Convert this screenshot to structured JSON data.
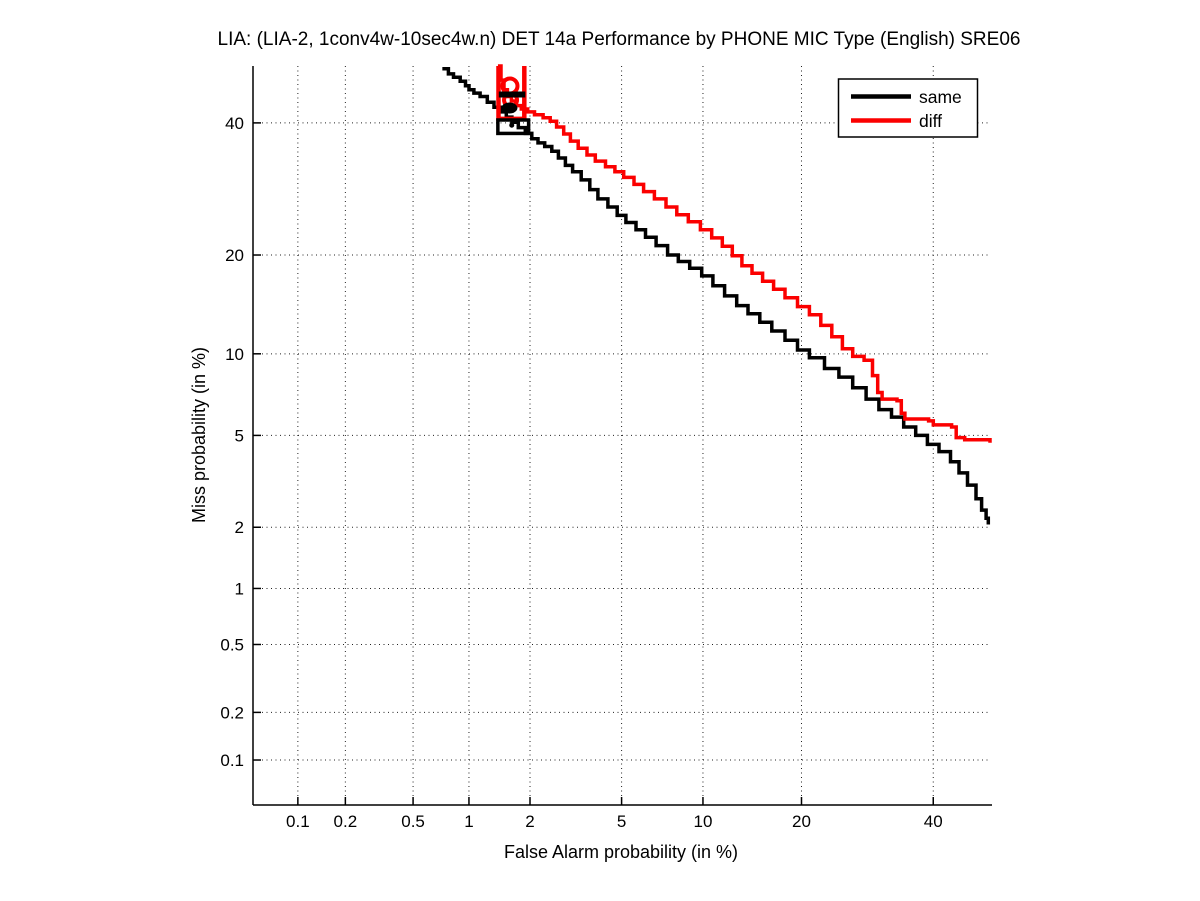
{
  "chart_data": {
    "type": "line",
    "title": "LIA: (LIA-2, 1conv4w-10sec4w.n) DET 14a Performance by PHONE MIC Type (English) SRE06",
    "xlabel": "False Alarm probability (in %)",
    "ylabel": "Miss probability (in %)",
    "scale": "normal-deviate (probit) on both axes",
    "xlim": [
      0.05,
      50
    ],
    "ylim": [
      0.05,
      50
    ],
    "grid": "dotted",
    "x_ticks": [
      0.1,
      0.2,
      0.5,
      1,
      2,
      5,
      10,
      20,
      40
    ],
    "x_tick_labels": [
      "0.1",
      "0.2",
      "0.5",
      "1",
      "2",
      "5",
      "10",
      "20",
      "40"
    ],
    "y_ticks": [
      0.1,
      0.2,
      0.5,
      1,
      2,
      5,
      10,
      20,
      40
    ],
    "y_tick_labels": [
      "0.1",
      "0.2",
      "0.5",
      "1",
      "2",
      "5",
      "10",
      "20",
      "40"
    ],
    "legend": {
      "position": "top-right",
      "entries": [
        {
          "label": "same",
          "color": "#000000"
        },
        {
          "label": "diff",
          "color": "#fb0000"
        }
      ]
    },
    "series": [
      {
        "name": "same",
        "color": "#000000",
        "points_fa_miss_percent": [
          [
            0.74,
            49.5
          ],
          [
            0.78,
            48.6
          ],
          [
            0.83,
            48.0
          ],
          [
            0.9,
            47.3
          ],
          [
            0.96,
            46.5
          ],
          [
            1.0,
            45.8
          ],
          [
            1.06,
            45.2
          ],
          [
            1.14,
            44.6
          ],
          [
            1.24,
            43.6
          ],
          [
            1.34,
            42.7
          ],
          [
            1.44,
            41.9
          ],
          [
            1.54,
            41.0
          ],
          [
            1.64,
            40.1
          ],
          [
            1.76,
            39.2
          ],
          [
            1.9,
            38.2
          ],
          [
            2.04,
            37.3
          ],
          [
            2.18,
            36.6
          ],
          [
            2.34,
            36.0
          ],
          [
            2.52,
            35.2
          ],
          [
            2.7,
            34.1
          ],
          [
            2.9,
            32.9
          ],
          [
            3.12,
            31.9
          ],
          [
            3.4,
            30.6
          ],
          [
            3.7,
            29.1
          ],
          [
            4.0,
            27.7
          ],
          [
            4.4,
            26.5
          ],
          [
            4.8,
            25.3
          ],
          [
            5.2,
            24.3
          ],
          [
            5.7,
            23.3
          ],
          [
            6.2,
            22.3
          ],
          [
            6.8,
            21.2
          ],
          [
            7.5,
            20.0
          ],
          [
            8.2,
            19.2
          ],
          [
            9.0,
            18.4
          ],
          [
            9.9,
            17.5
          ],
          [
            10.8,
            16.4
          ],
          [
            11.8,
            15.3
          ],
          [
            12.9,
            14.3
          ],
          [
            14.0,
            13.5
          ],
          [
            15.2,
            12.7
          ],
          [
            16.5,
            11.9
          ],
          [
            18.0,
            11.1
          ],
          [
            19.5,
            10.3
          ],
          [
            21.0,
            9.7
          ],
          [
            23.0,
            8.9
          ],
          [
            25.0,
            8.3
          ],
          [
            27.0,
            7.6
          ],
          [
            29.0,
            6.9
          ],
          [
            31.0,
            6.3
          ],
          [
            33.0,
            5.9
          ],
          [
            35.0,
            5.4
          ],
          [
            37.0,
            5.0
          ],
          [
            39.0,
            4.6
          ],
          [
            41.0,
            4.3
          ],
          [
            43.0,
            3.9
          ],
          [
            44.5,
            3.5
          ],
          [
            46.0,
            3.1
          ],
          [
            47.5,
            2.7
          ],
          [
            48.5,
            2.4
          ],
          [
            49.3,
            2.2
          ],
          [
            49.7,
            2.1
          ]
        ]
      },
      {
        "name": "diff",
        "color": "#fb0000",
        "points_fa_miss_percent": [
          [
            1.43,
            50.0
          ],
          [
            1.45,
            47.5
          ],
          [
            1.5,
            45.8
          ],
          [
            1.56,
            44.6
          ],
          [
            1.63,
            43.8
          ],
          [
            1.72,
            43.0
          ],
          [
            1.82,
            42.4
          ],
          [
            1.95,
            41.9
          ],
          [
            2.1,
            41.4
          ],
          [
            2.3,
            40.9
          ],
          [
            2.48,
            40.3
          ],
          [
            2.65,
            39.3
          ],
          [
            2.85,
            38.1
          ],
          [
            3.05,
            36.9
          ],
          [
            3.3,
            35.7
          ],
          [
            3.6,
            34.6
          ],
          [
            3.9,
            33.6
          ],
          [
            4.3,
            32.7
          ],
          [
            4.7,
            31.9
          ],
          [
            5.1,
            31.0
          ],
          [
            5.6,
            29.9
          ],
          [
            6.1,
            28.8
          ],
          [
            6.7,
            27.7
          ],
          [
            7.4,
            26.5
          ],
          [
            8.1,
            25.4
          ],
          [
            8.9,
            24.4
          ],
          [
            9.8,
            23.3
          ],
          [
            10.7,
            22.2
          ],
          [
            11.6,
            21.1
          ],
          [
            12.5,
            19.9
          ],
          [
            13.4,
            18.7
          ],
          [
            14.4,
            17.8
          ],
          [
            15.5,
            16.9
          ],
          [
            16.7,
            16.0
          ],
          [
            18.0,
            15.1
          ],
          [
            19.5,
            14.2
          ],
          [
            21.0,
            13.4
          ],
          [
            22.5,
            12.4
          ],
          [
            24.0,
            11.4
          ],
          [
            25.5,
            10.4
          ],
          [
            27.0,
            9.8
          ],
          [
            28.7,
            9.5
          ],
          [
            30.0,
            8.4
          ],
          [
            30.8,
            7.3
          ],
          [
            31.5,
            6.9
          ],
          [
            33.9,
            6.8
          ],
          [
            34.6,
            6.1
          ],
          [
            35.2,
            5.8
          ],
          [
            39.2,
            5.7
          ],
          [
            40.0,
            5.5
          ],
          [
            43.2,
            5.4
          ],
          [
            44.0,
            4.9
          ],
          [
            45.5,
            4.8
          ],
          [
            50.0,
            4.75
          ]
        ]
      }
    ],
    "annotations": [
      {
        "id": "diff-operating-box",
        "type": "open_top_box",
        "color": "#fb0000",
        "fa_min": 1.41,
        "fa_max": 1.88,
        "miss_bottom": 40.7,
        "lw": 4.5
      },
      {
        "id": "diff-point-upper",
        "type": "ring",
        "color": "#fb0000",
        "fa": 1.605,
        "miss": 46.45,
        "r": 7.5,
        "lw": 4
      },
      {
        "id": "diff-point-lower",
        "type": "ring",
        "color": "#fb0000",
        "fa": 1.615,
        "miss": 43.98,
        "r": 6.5,
        "lw": 4
      },
      {
        "id": "same-box-top-bar",
        "type": "hbar",
        "color": "#000000",
        "fa_min": 1.415,
        "fa_max": 1.9,
        "miss": 44.95,
        "lw": 6
      },
      {
        "id": "same-point",
        "type": "dot",
        "color": "#000000",
        "fa": 1.595,
        "miss": 42.58,
        "rx": 8,
        "ry": 5.5
      },
      {
        "id": "same-operating-box",
        "type": "rect",
        "color": "#000000",
        "fa_min": 1.4,
        "fa_max": 1.97,
        "miss_min": 38.2,
        "miss_max": 40.5,
        "lw": 3.5
      },
      {
        "id": "same-box-dot",
        "type": "dot",
        "color": "#000000",
        "fa": 1.637,
        "miss": 39.6,
        "rx": 2.5,
        "ry": 2.5
      }
    ]
  }
}
